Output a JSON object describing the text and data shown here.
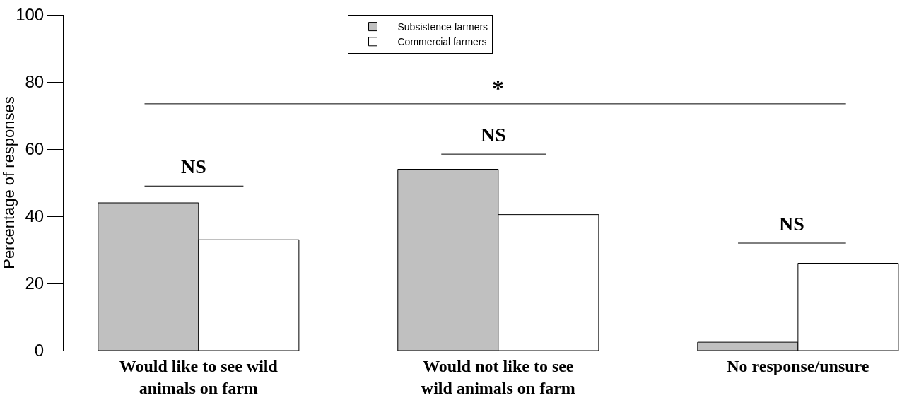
{
  "chart_data": {
    "type": "bar",
    "ylabel": "Percentage of responses",
    "categories": [
      "Would like to see wild animals on farm",
      "Would not like to see wild animals on farm",
      "No response/unsure"
    ],
    "series": [
      {
        "name": "Subsistence farmers",
        "color": "#c0c0c0",
        "values": [
          44,
          54,
          2.5
        ]
      },
      {
        "name": "Commercial farmers",
        "color": "#ffffff",
        "values": [
          33,
          40.5,
          26
        ]
      }
    ],
    "ylim": [
      0,
      100
    ],
    "yticks": [
      0,
      20,
      40,
      60,
      80,
      100
    ],
    "legend": "top",
    "ref_lines": [
      {
        "axis": "y",
        "value": 73.5,
        "label": "*"
      },
      {
        "axis": "y",
        "value": 49,
        "label": "NS"
      },
      {
        "axis": "y",
        "value": 58.5,
        "label": "NS"
      },
      {
        "axis": "y",
        "value": 32,
        "label": "NS"
      }
    ]
  }
}
